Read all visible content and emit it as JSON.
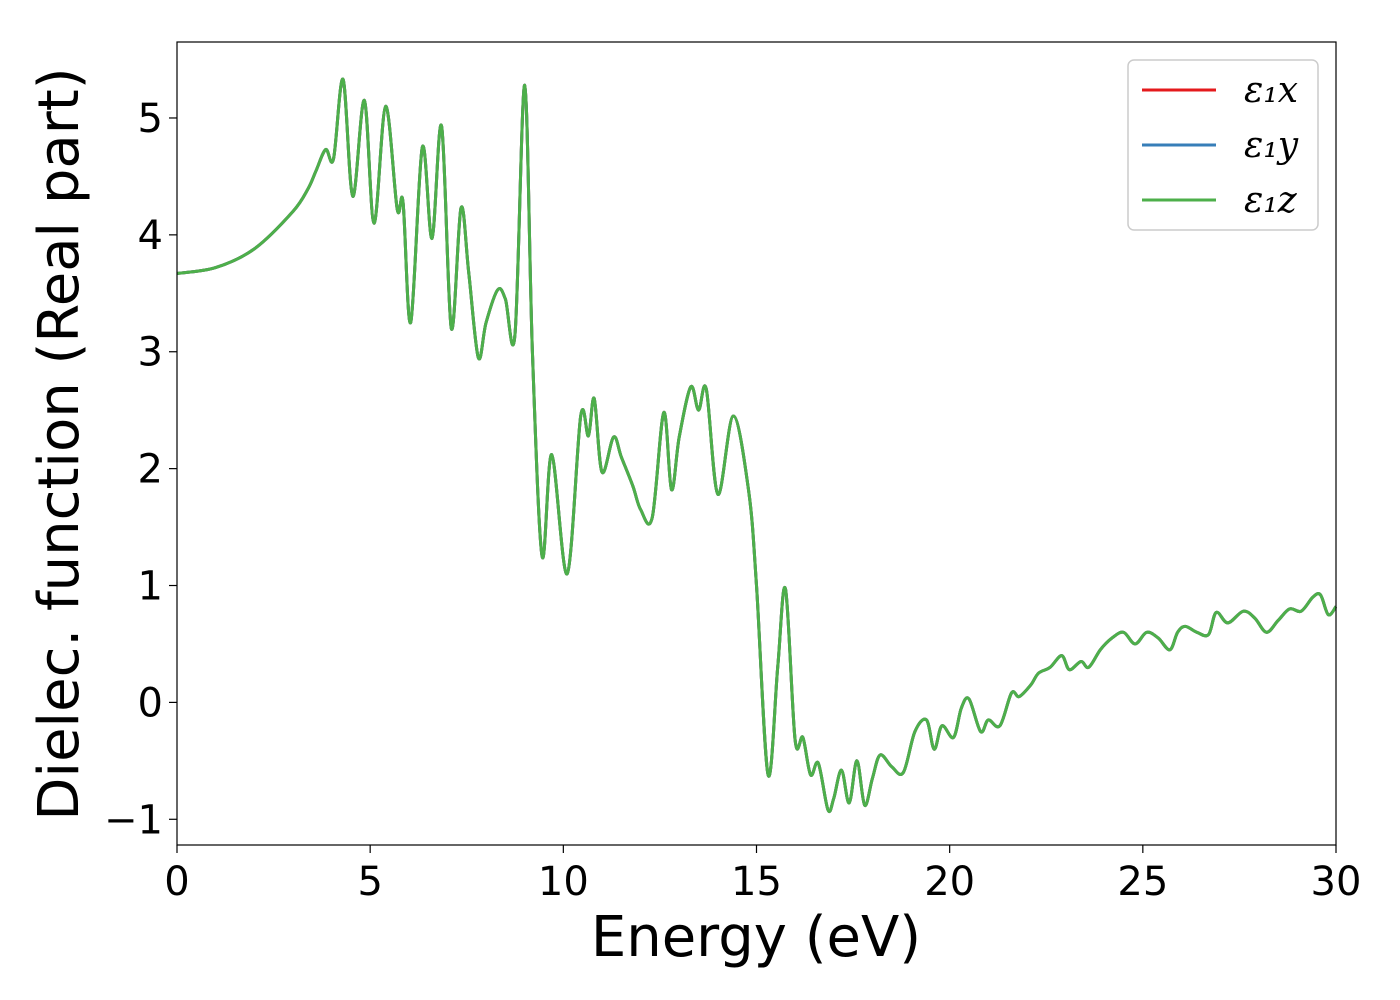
{
  "chart_data": {
    "type": "line",
    "title": "",
    "xlabel": "Energy (eV)",
    "ylabel": "Dielec. function (Real part)",
    "xlim": [
      0,
      30
    ],
    "ylim": [
      -1.22,
      5.65
    ],
    "xticks": [
      0,
      5,
      10,
      15,
      20,
      25,
      30
    ],
    "yticks": [
      -1,
      0,
      1,
      2,
      3,
      4,
      5
    ],
    "xtick_labels": [
      "0",
      "5",
      "10",
      "15",
      "20",
      "25",
      "30"
    ],
    "ytick_labels": [
      "−1",
      "0",
      "1",
      "2",
      "3",
      "4",
      "5"
    ],
    "grid": false,
    "legend_position": "top-right",
    "x": [
      0,
      1,
      2,
      3,
      3.4,
      3.6,
      3.85,
      4.05,
      4.3,
      4.55,
      4.85,
      5.1,
      5.4,
      5.7,
      5.85,
      6.05,
      6.35,
      6.6,
      6.85,
      7.1,
      7.35,
      7.55,
      7.8,
      8.0,
      8.3,
      8.5,
      8.75,
      9.0,
      9.2,
      9.45,
      9.7,
      10.1,
      10.45,
      10.65,
      10.8,
      11.0,
      11.3,
      11.5,
      11.8,
      12.0,
      12.3,
      12.6,
      12.8,
      13.0,
      13.3,
      13.5,
      13.7,
      14.0,
      14.4,
      14.8,
      15.0,
      15.3,
      15.55,
      15.75,
      16.0,
      16.2,
      16.4,
      16.6,
      16.85,
      17.0,
      17.2,
      17.4,
      17.6,
      17.8,
      18.0,
      18.2,
      18.5,
      18.8,
      19.1,
      19.4,
      19.6,
      19.8,
      20.1,
      20.3,
      20.5,
      20.8,
      21.0,
      21.3,
      21.6,
      21.8,
      22.1,
      22.3,
      22.6,
      22.9,
      23.1,
      23.4,
      23.6,
      23.9,
      24.2,
      24.5,
      24.8,
      25.1,
      25.4,
      25.7,
      25.9,
      26.1,
      26.4,
      26.7,
      26.9,
      27.2,
      27.6,
      27.9,
      28.2,
      28.5,
      28.8,
      29.1,
      29.4,
      29.6,
      29.8,
      30.0
    ],
    "series": [
      {
        "name": "ε₁x",
        "color": "#e41a1c",
        "y": [
          3.67,
          3.72,
          3.88,
          4.2,
          4.4,
          4.55,
          4.73,
          4.65,
          5.33,
          4.33,
          5.15,
          4.1,
          5.1,
          4.22,
          4.28,
          3.25,
          4.75,
          3.97,
          4.93,
          3.2,
          4.23,
          3.68,
          2.95,
          3.25,
          3.53,
          3.45,
          3.15,
          5.28,
          3.0,
          1.25,
          2.12,
          1.1,
          2.45,
          2.28,
          2.6,
          1.97,
          2.27,
          2.1,
          1.85,
          1.65,
          1.58,
          2.48,
          1.82,
          2.27,
          2.7,
          2.5,
          2.68,
          1.78,
          2.45,
          1.8,
          1.0,
          -0.62,
          0.3,
          0.97,
          -0.32,
          -0.3,
          -0.62,
          -0.52,
          -0.92,
          -0.82,
          -0.58,
          -0.86,
          -0.5,
          -0.88,
          -0.65,
          -0.45,
          -0.55,
          -0.6,
          -0.25,
          -0.15,
          -0.4,
          -0.2,
          -0.3,
          -0.05,
          0.03,
          -0.25,
          -0.15,
          -0.2,
          0.08,
          0.05,
          0.15,
          0.25,
          0.3,
          0.4,
          0.28,
          0.35,
          0.3,
          0.45,
          0.55,
          0.6,
          0.5,
          0.6,
          0.55,
          0.45,
          0.6,
          0.65,
          0.6,
          0.58,
          0.77,
          0.68,
          0.78,
          0.72,
          0.6,
          0.7,
          0.8,
          0.78,
          0.9,
          0.92,
          0.75,
          0.82
        ]
      },
      {
        "name": "ε₁y",
        "color": "#377eb8",
        "y": [
          3.67,
          3.72,
          3.88,
          4.2,
          4.4,
          4.55,
          4.73,
          4.65,
          5.33,
          4.33,
          5.15,
          4.1,
          5.1,
          4.22,
          4.28,
          3.25,
          4.75,
          3.97,
          4.93,
          3.2,
          4.23,
          3.68,
          2.95,
          3.25,
          3.53,
          3.45,
          3.15,
          5.28,
          3.0,
          1.25,
          2.12,
          1.1,
          2.45,
          2.28,
          2.6,
          1.97,
          2.27,
          2.1,
          1.85,
          1.65,
          1.58,
          2.48,
          1.82,
          2.27,
          2.7,
          2.5,
          2.68,
          1.78,
          2.45,
          1.8,
          1.0,
          -0.62,
          0.3,
          0.97,
          -0.32,
          -0.3,
          -0.62,
          -0.52,
          -0.92,
          -0.82,
          -0.58,
          -0.86,
          -0.5,
          -0.88,
          -0.65,
          -0.45,
          -0.55,
          -0.6,
          -0.25,
          -0.15,
          -0.4,
          -0.2,
          -0.3,
          -0.05,
          0.03,
          -0.25,
          -0.15,
          -0.2,
          0.08,
          0.05,
          0.15,
          0.25,
          0.3,
          0.4,
          0.28,
          0.35,
          0.3,
          0.45,
          0.55,
          0.6,
          0.5,
          0.6,
          0.55,
          0.45,
          0.6,
          0.65,
          0.6,
          0.58,
          0.77,
          0.68,
          0.78,
          0.72,
          0.6,
          0.7,
          0.8,
          0.78,
          0.9,
          0.92,
          0.75,
          0.82
        ]
      },
      {
        "name": "ε₁z",
        "color": "#4daf4a",
        "y": [
          3.67,
          3.72,
          3.88,
          4.2,
          4.4,
          4.55,
          4.73,
          4.65,
          5.33,
          4.33,
          5.15,
          4.1,
          5.1,
          4.22,
          4.28,
          3.25,
          4.75,
          3.97,
          4.93,
          3.2,
          4.23,
          3.68,
          2.95,
          3.25,
          3.53,
          3.45,
          3.15,
          5.28,
          3.0,
          1.25,
          2.12,
          1.1,
          2.45,
          2.28,
          2.6,
          1.97,
          2.27,
          2.1,
          1.85,
          1.65,
          1.58,
          2.48,
          1.82,
          2.27,
          2.7,
          2.5,
          2.68,
          1.78,
          2.45,
          1.8,
          1.0,
          -0.62,
          0.3,
          0.97,
          -0.32,
          -0.3,
          -0.62,
          -0.52,
          -0.92,
          -0.82,
          -0.58,
          -0.86,
          -0.5,
          -0.88,
          -0.65,
          -0.45,
          -0.55,
          -0.6,
          -0.25,
          -0.15,
          -0.4,
          -0.2,
          -0.3,
          -0.05,
          0.03,
          -0.25,
          -0.15,
          -0.2,
          0.08,
          0.05,
          0.15,
          0.25,
          0.3,
          0.4,
          0.28,
          0.35,
          0.3,
          0.45,
          0.55,
          0.6,
          0.5,
          0.6,
          0.55,
          0.45,
          0.6,
          0.65,
          0.6,
          0.58,
          0.77,
          0.68,
          0.78,
          0.72,
          0.6,
          0.7,
          0.8,
          0.78,
          0.9,
          0.92,
          0.75,
          0.82
        ]
      }
    ]
  }
}
